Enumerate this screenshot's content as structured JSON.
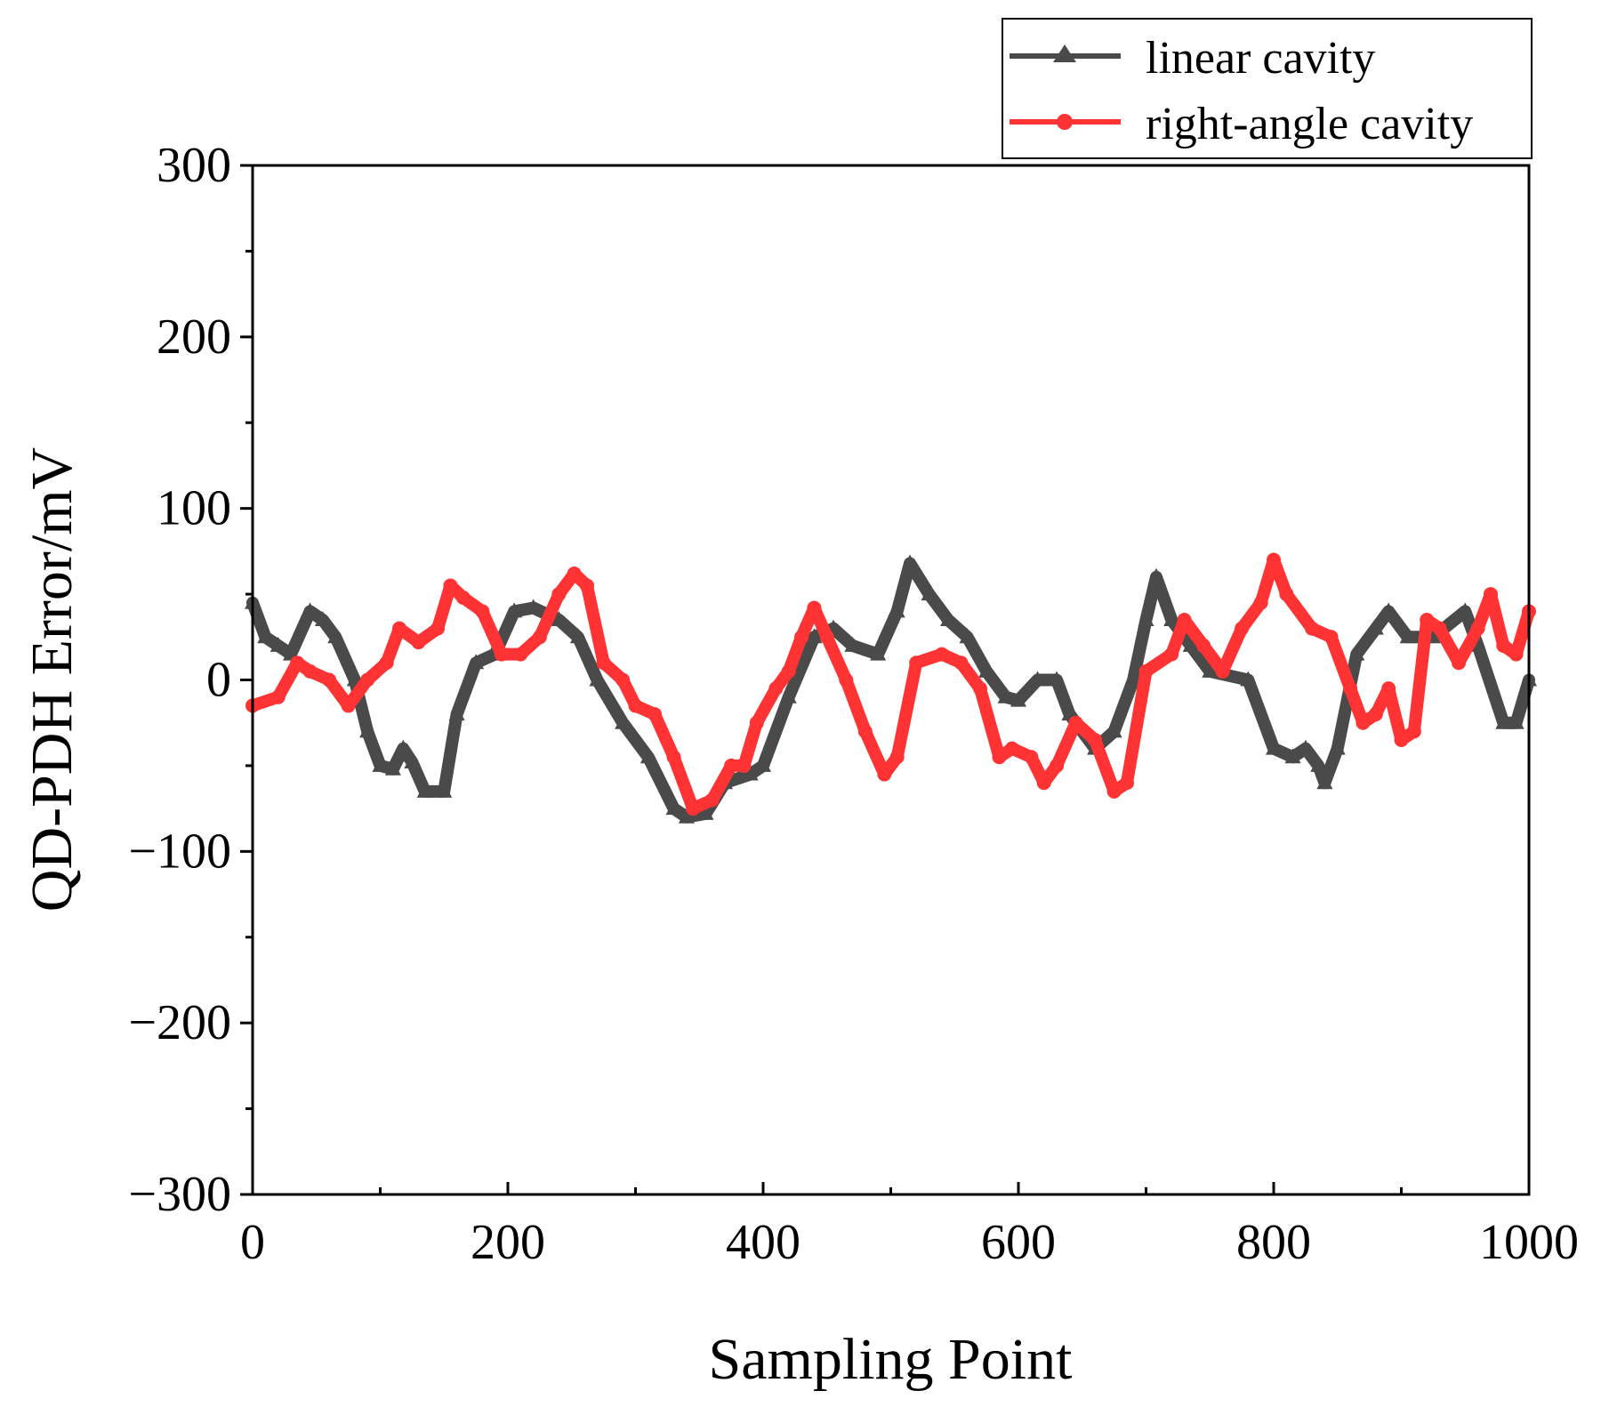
{
  "chart_data": {
    "type": "line",
    "title": "",
    "xlabel": "Sampling Point",
    "ylabel": "QD-PDH Error/mV",
    "xlim": [
      0,
      1000
    ],
    "ylim": [
      -300,
      300
    ],
    "xticks": [
      0,
      200,
      400,
      600,
      800,
      1000
    ],
    "xtick_labels": [
      "0",
      "200",
      "400",
      "600",
      "800",
      "1000"
    ],
    "yticks": [
      300,
      200,
      100,
      0,
      -100,
      -200,
      -300
    ],
    "ytick_labels": [
      "300",
      "200",
      "100",
      "0",
      "−100",
      "−200",
      "−300"
    ],
    "grid": false,
    "legend_position": "top-right",
    "series": [
      {
        "name": "linear cavity",
        "color": "#4a4a4a",
        "marker": "triangle",
        "x": [
          0,
          10,
          20,
          30,
          45,
          55,
          65,
          80,
          90,
          100,
          110,
          118,
          125,
          135,
          150,
          160,
          175,
          190,
          205,
          220,
          240,
          255,
          270,
          290,
          310,
          330,
          340,
          355,
          370,
          390,
          400,
          420,
          440,
          455,
          470,
          490,
          505,
          515,
          530,
          545,
          560,
          575,
          590,
          600,
          615,
          630,
          640,
          660,
          675,
          690,
          700,
          708,
          720,
          735,
          750,
          780,
          800,
          815,
          825,
          835,
          840,
          850,
          865,
          880,
          890,
          905,
          925,
          950,
          960,
          980,
          990,
          1000
        ],
        "y": [
          45,
          25,
          20,
          15,
          40,
          35,
          25,
          0,
          -30,
          -50,
          -52,
          -40,
          -48,
          -65,
          -65,
          -20,
          10,
          15,
          40,
          42,
          35,
          25,
          0,
          -25,
          -45,
          -75,
          -80,
          -78,
          -60,
          -55,
          -50,
          -10,
          25,
          30,
          20,
          15,
          40,
          68,
          50,
          35,
          25,
          5,
          -10,
          -12,
          0,
          0,
          -20,
          -40,
          -30,
          0,
          35,
          60,
          35,
          20,
          5,
          0,
          -40,
          -45,
          -40,
          -50,
          -60,
          -40,
          15,
          30,
          40,
          25,
          25,
          40,
          20,
          -25,
          -25,
          0
        ]
      },
      {
        "name": "right-angle cavity",
        "color": "#ff3333",
        "marker": "circle",
        "x": [
          0,
          20,
          35,
          45,
          60,
          75,
          90,
          105,
          115,
          130,
          145,
          155,
          165,
          180,
          195,
          210,
          225,
          240,
          252,
          262,
          275,
          290,
          300,
          315,
          330,
          345,
          360,
          375,
          385,
          395,
          410,
          420,
          430,
          440,
          450,
          465,
          480,
          495,
          505,
          520,
          540,
          555,
          570,
          585,
          595,
          610,
          620,
          630,
          645,
          660,
          675,
          685,
          700,
          720,
          730,
          745,
          760,
          775,
          790,
          800,
          810,
          830,
          845,
          860,
          870,
          880,
          890,
          900,
          910,
          920,
          930,
          945,
          960,
          970,
          980,
          990,
          1000
        ],
        "y": [
          -15,
          -10,
          10,
          5,
          0,
          -15,
          0,
          10,
          30,
          22,
          30,
          55,
          48,
          40,
          15,
          15,
          25,
          50,
          62,
          55,
          10,
          0,
          -15,
          -20,
          -45,
          -75,
          -70,
          -50,
          -50,
          -25,
          -5,
          5,
          25,
          42,
          25,
          0,
          -30,
          -55,
          -45,
          10,
          15,
          10,
          -5,
          -45,
          -40,
          -45,
          -60,
          -50,
          -25,
          -35,
          -65,
          -60,
          5,
          15,
          35,
          20,
          5,
          30,
          45,
          70,
          50,
          30,
          25,
          -5,
          -25,
          -20,
          -5,
          -35,
          -30,
          35,
          30,
          10,
          30,
          50,
          20,
          15,
          40
        ]
      }
    ]
  }
}
